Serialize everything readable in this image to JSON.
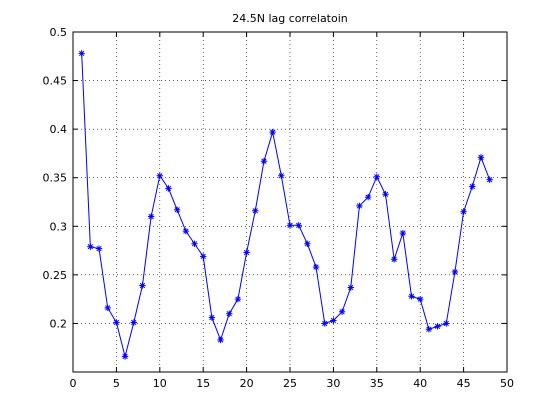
{
  "chart_data": {
    "type": "line",
    "title": "24.5N lag correlatoin",
    "xlabel": "",
    "ylabel": "",
    "xlim": [
      0,
      50
    ],
    "ylim": [
      0.15,
      0.5
    ],
    "xticks": [
      "0",
      "5",
      "10",
      "15",
      "20",
      "25",
      "30",
      "35",
      "40",
      "45",
      "50"
    ],
    "yticks": [
      "0.2",
      "0.25",
      "0.3",
      "0.35",
      "0.4",
      "0.45",
      "0.5"
    ],
    "grid": true,
    "line_color": "#0000ff",
    "marker": "asterisk",
    "series": [
      {
        "x": [
          1,
          2,
          3,
          4,
          5,
          6,
          7,
          8,
          9,
          10,
          11,
          12,
          13,
          14,
          15,
          16,
          17,
          18,
          19,
          20,
          21,
          22,
          23,
          24,
          25,
          26,
          27,
          28,
          29,
          30,
          31,
          32,
          33,
          34,
          35,
          36,
          37,
          38,
          39,
          40,
          41,
          42,
          43,
          44,
          45,
          46,
          47,
          48
        ],
        "values": [
          0.478,
          0.279,
          0.277,
          0.216,
          0.201,
          0.166,
          0.201,
          0.239,
          0.31,
          0.352,
          0.339,
          0.317,
          0.295,
          0.282,
          0.269,
          0.206,
          0.183,
          0.21,
          0.225,
          0.273,
          0.316,
          0.367,
          0.397,
          0.352,
          0.301,
          0.301,
          0.282,
          0.258,
          0.2,
          0.203,
          0.212,
          0.237,
          0.321,
          0.33,
          0.351,
          0.333,
          0.266,
          0.293,
          0.228,
          0.225,
          0.194,
          0.197,
          0.2,
          0.253,
          0.315,
          0.341,
          0.371,
          0.348
        ]
      }
    ]
  }
}
